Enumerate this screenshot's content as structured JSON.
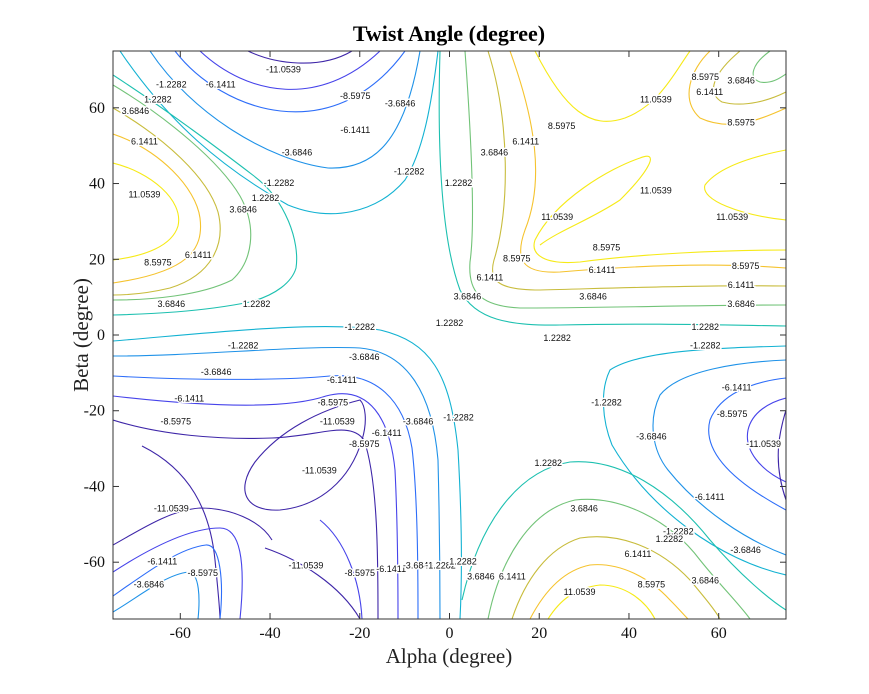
{
  "chart_data": {
    "type": "contour",
    "title": "Twist Angle (degree)",
    "xlabel": "Alpha (degree)",
    "ylabel": "Beta (degree)",
    "xlim": [
      -75,
      75
    ],
    "ylim": [
      -75,
      75
    ],
    "x_ticks": [
      "-60",
      "-40",
      "-20",
      "0",
      "20",
      "40",
      "60"
    ],
    "y_ticks": [
      "60",
      "40",
      "20",
      "0",
      "-20",
      "-40",
      "-60"
    ],
    "levels": [
      -11.0539,
      -8.5975,
      -6.1411,
      -3.6846,
      -1.2282,
      1.2282,
      3.6846,
      6.1411,
      8.5975,
      11.0539
    ],
    "colormap": "parula",
    "level_colors": [
      "#3e26a8",
      "#4643ea",
      "#2d6df9",
      "#1f92e8",
      "#13b2d2",
      "#1dc0b0",
      "#72c378",
      "#c8bc3c",
      "#f5c32e",
      "#f6ea17"
    ],
    "contour_labels": [
      {
        "text": "-11.0539",
        "x": -37,
        "y": 70
      },
      {
        "text": "-8.5975",
        "x": -21,
        "y": 63
      },
      {
        "text": "-6.1411",
        "x": -21,
        "y": 54
      },
      {
        "text": "-3.6846",
        "x": -11,
        "y": 61
      },
      {
        "text": "-3.6846",
        "x": -34,
        "y": 48
      },
      {
        "text": "-1.2282",
        "x": -9,
        "y": 43
      },
      {
        "text": "-1.2282",
        "x": -38,
        "y": 40
      },
      {
        "text": "-6.1411",
        "x": -51,
        "y": 66
      },
      {
        "text": "-1.2282",
        "x": -62,
        "y": 66
      },
      {
        "text": "1.2282",
        "x": -65,
        "y": 62
      },
      {
        "text": "3.6846",
        "x": -70,
        "y": 59
      },
      {
        "text": "6.1411",
        "x": -68,
        "y": 51
      },
      {
        "text": "11.0539",
        "x": -68,
        "y": 37
      },
      {
        "text": "3.6846",
        "x": -46,
        "y": 33
      },
      {
        "text": "1.2282",
        "x": -41,
        "y": 36
      },
      {
        "text": "8.5975",
        "x": -65,
        "y": 19
      },
      {
        "text": "6.1411",
        "x": -56,
        "y": 21
      },
      {
        "text": "3.6846",
        "x": -62,
        "y": 8
      },
      {
        "text": "1.2282",
        "x": -43,
        "y": 8
      },
      {
        "text": "-1.2282",
        "x": -20,
        "y": 2
      },
      {
        "text": "-1.2282",
        "x": -46,
        "y": -3
      },
      {
        "text": "-3.6846",
        "x": -52,
        "y": -10
      },
      {
        "text": "-3.6846",
        "x": -19,
        "y": -6
      },
      {
        "text": "-6.1411",
        "x": -58,
        "y": -17
      },
      {
        "text": "-6.1411",
        "x": -24,
        "y": -12
      },
      {
        "text": "-8.5975",
        "x": -26,
        "y": -18
      },
      {
        "text": "-11.0539",
        "x": -25,
        "y": -23
      },
      {
        "text": "-8.5975",
        "x": -61,
        "y": -23
      },
      {
        "text": "-11.0539",
        "x": -29,
        "y": -36
      },
      {
        "text": "-8.5975",
        "x": -19,
        "y": -29
      },
      {
        "text": "-6.1411",
        "x": -14,
        "y": -26
      },
      {
        "text": "-3.6846",
        "x": -7,
        "y": -23
      },
      {
        "text": "-1.2282",
        "x": 2,
        "y": -22
      },
      {
        "text": "-11.0539",
        "x": -62,
        "y": -46
      },
      {
        "text": "-6.1411",
        "x": -64,
        "y": -60
      },
      {
        "text": "-3.6846",
        "x": -67,
        "y": -66
      },
      {
        "text": "-8.5975",
        "x": -55,
        "y": -63
      },
      {
        "text": "-11.0539",
        "x": -32,
        "y": -61
      },
      {
        "text": "-8.5975",
        "x": -20,
        "y": -63
      },
      {
        "text": "-6.1411",
        "x": -13,
        "y": -62
      },
      {
        "text": "-3.6846",
        "x": -7,
        "y": -61
      },
      {
        "text": "-1.2282",
        "x": -2,
        "y": -61
      },
      {
        "text": "1.2282",
        "x": 3,
        "y": -60
      },
      {
        "text": "3.6846",
        "x": 7,
        "y": -64
      },
      {
        "text": "6.1411",
        "x": 14,
        "y": -64
      },
      {
        "text": "1.2282",
        "x": 22,
        "y": -34
      },
      {
        "text": "3.6846",
        "x": 30,
        "y": -46
      },
      {
        "text": "1.2282",
        "x": 24,
        "y": -1
      },
      {
        "text": "1.2282",
        "x": 57,
        "y": 2
      },
      {
        "text": "-1.2282",
        "x": 57,
        "y": -3
      },
      {
        "text": "1.2282",
        "x": 0,
        "y": 3
      },
      {
        "text": "3.6846",
        "x": 4,
        "y": 10
      },
      {
        "text": "6.1411",
        "x": 9,
        "y": 15
      },
      {
        "text": "8.5975",
        "x": 15,
        "y": 20
      },
      {
        "text": "11.0539",
        "x": 24,
        "y": 31
      },
      {
        "text": "3.6846",
        "x": 10,
        "y": 48
      },
      {
        "text": "1.2282",
        "x": 2,
        "y": 40
      },
      {
        "text": "6.1411",
        "x": 17,
        "y": 51
      },
      {
        "text": "8.5975",
        "x": 25,
        "y": 55
      },
      {
        "text": "11.0539",
        "x": 46,
        "y": 38
      },
      {
        "text": "8.5975",
        "x": 35,
        "y": 23
      },
      {
        "text": "6.1411",
        "x": 34,
        "y": 17
      },
      {
        "text": "3.6846",
        "x": 32,
        "y": 10
      },
      {
        "text": "11.0539",
        "x": 63,
        "y": 31
      },
      {
        "text": "8.5975",
        "x": 66,
        "y": 18
      },
      {
        "text": "6.1411",
        "x": 65,
        "y": 13
      },
      {
        "text": "3.6846",
        "x": 65,
        "y": 8
      },
      {
        "text": "11.0539",
        "x": 46,
        "y": 62
      },
      {
        "text": "8.5975",
        "x": 57,
        "y": 68
      },
      {
        "text": "6.1411",
        "x": 58,
        "y": 64
      },
      {
        "text": "3.6846",
        "x": 65,
        "y": 67
      },
      {
        "text": "8.5975",
        "x": 65,
        "y": 56
      },
      {
        "text": "-6.1411",
        "x": 64,
        "y": -14
      },
      {
        "text": "-8.5975",
        "x": 63,
        "y": -21
      },
      {
        "text": "-11.0539",
        "x": 70,
        "y": -29
      },
      {
        "text": "-3.6846",
        "x": 45,
        "y": -27
      },
      {
        "text": "-1.2282",
        "x": 35,
        "y": -18
      },
      {
        "text": "-6.1411",
        "x": 58,
        "y": -43
      },
      {
        "text": "-1.2282",
        "x": 51,
        "y": -52
      },
      {
        "text": "1.2282",
        "x": 49,
        "y": -54
      },
      {
        "text": "6.1411",
        "x": 42,
        "y": -58
      },
      {
        "text": "-3.6846",
        "x": 66,
        "y": -57
      },
      {
        "text": "3.6846",
        "x": 57,
        "y": -65
      },
      {
        "text": "8.5975",
        "x": 45,
        "y": -66
      },
      {
        "text": "11.0539",
        "x": 29,
        "y": -68
      }
    ]
  }
}
